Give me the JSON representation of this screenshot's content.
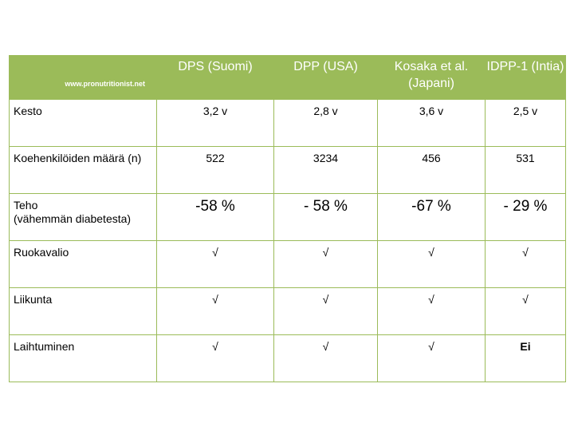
{
  "header": {
    "site": "www.pronutritionist.net",
    "columns": [
      {
        "line1": "DPS (Suomi)",
        "line2": ""
      },
      {
        "line1": "DPP (USA)",
        "line2": ""
      },
      {
        "line1": "Kosaka et al.",
        "line2": "(Japani)"
      },
      {
        "line1": "IDPP-1 (Intia)",
        "line2": ""
      }
    ]
  },
  "rows": [
    {
      "label1": "Kesto",
      "label2": "",
      "values": [
        "3,2 v",
        "2,8 v",
        "3,6 v",
        "2,5 v"
      ]
    },
    {
      "label1": "Koehenkilöiden määrä (n)",
      "label2": "",
      "values": [
        "522",
        "3234",
        "456",
        "531"
      ]
    },
    {
      "label1": "Teho",
      "label2": "(vähemmän diabetesta)",
      "values": [
        "-58 %",
        "- 58 %",
        "-67 %",
        "- 29 %"
      ]
    },
    {
      "label1": "Ruokavalio",
      "label2": "",
      "values": [
        "√",
        "√",
        "√",
        "√"
      ]
    },
    {
      "label1": "Liikunta",
      "label2": "",
      "values": [
        "√",
        "√",
        "√",
        "√"
      ]
    },
    {
      "label1": "Laihtuminen",
      "label2": "",
      "values": [
        "√",
        "√",
        "√",
        "Ei"
      ]
    }
  ],
  "colors": {
    "header_bg": "#9bbb59",
    "border": "#9bbb59"
  }
}
